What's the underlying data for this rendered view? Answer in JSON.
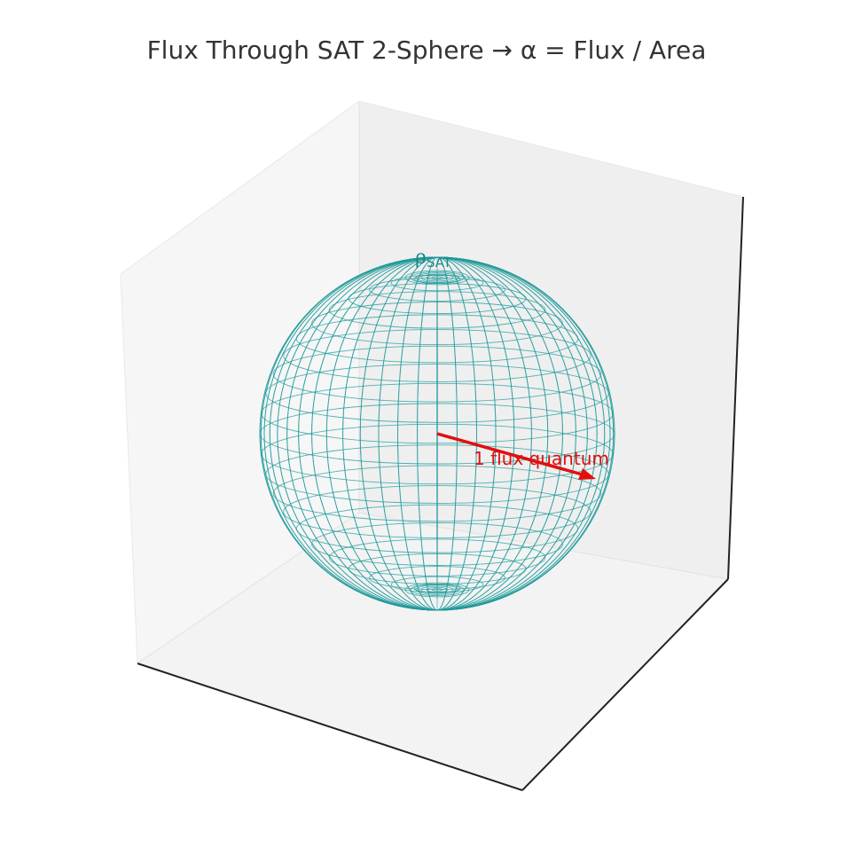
{
  "title": "Flux Through SAT 2-Sphere → α = Flux / Area",
  "sphere": {
    "label_main": "ρ",
    "label_sub": "SAT",
    "color": "#1f9a9a",
    "style": "wireframe"
  },
  "vector": {
    "label": "1 flux quantum",
    "color": "#e01010"
  },
  "axes": {
    "pane_colors": [
      "#f2f2f2",
      "#ececec",
      "#f4f4f4"
    ],
    "edge_color": "#222222",
    "grid": false,
    "ticks": false
  }
}
